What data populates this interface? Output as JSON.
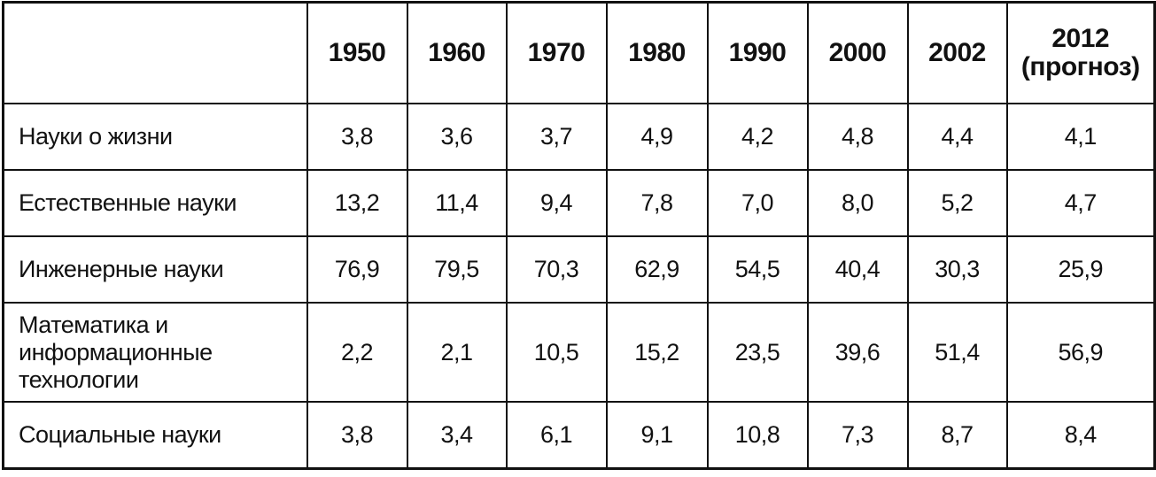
{
  "table": {
    "header": [
      "1950",
      "1960",
      "1970",
      "1980",
      "1990",
      "2000",
      "2002",
      "2012 (прогноз)"
    ],
    "rows": [
      {
        "label": "Науки о жизни",
        "values": [
          "3,8",
          "3,6",
          "3,7",
          "4,9",
          "4,2",
          "4,8",
          "4,4",
          "4,1"
        ]
      },
      {
        "label": "Естественные науки",
        "values": [
          "13,2",
          "11,4",
          "9,4",
          "7,8",
          "7,0",
          "8,0",
          "5,2",
          "4,7"
        ]
      },
      {
        "label": "Инженерные науки",
        "values": [
          "76,9",
          "79,5",
          "70,3",
          "62,9",
          "54,5",
          "40,4",
          "30,3",
          "25,9"
        ]
      },
      {
        "label": "Математика и информационные технологии",
        "values": [
          "2,2",
          "2,1",
          "10,5",
          "15,2",
          "23,5",
          "39,6",
          "51,4",
          "56,9"
        ]
      },
      {
        "label": "Социальные науки",
        "values": [
          "3,8",
          "3,4",
          "6,1",
          "9,1",
          "10,8",
          "7,3",
          "8,7",
          "8,4"
        ]
      }
    ]
  }
}
